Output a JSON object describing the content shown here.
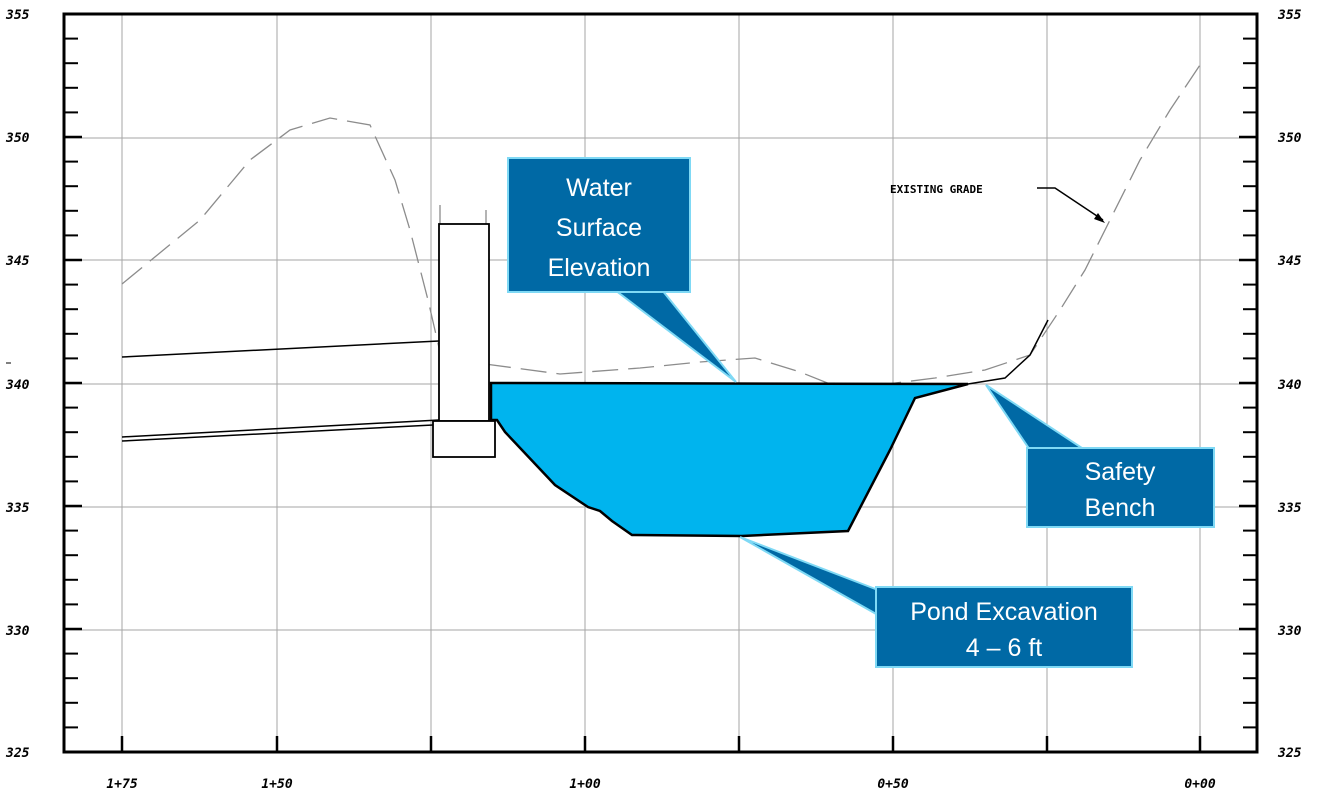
{
  "colors": {
    "water": "#00b4ee",
    "callout_fill": "#0069a5",
    "callout_border": "#7fd9f5",
    "grid": "#a6a6a6",
    "existing_grade": "#8c8c8c",
    "ink": "#000000"
  },
  "elevation_axis": {
    "ticks": [
      "355",
      "350",
      "345",
      "340",
      "335",
      "330",
      "325"
    ]
  },
  "station_axis": {
    "labels": [
      "1+75",
      "1+50",
      "1+00",
      "0+50",
      "0+00"
    ]
  },
  "notes": {
    "existing_grade": "EXISTING GRADE"
  },
  "callouts": {
    "water_surface": [
      "Water",
      "Surface",
      "Elevation"
    ],
    "safety_bench": [
      "Safety",
      "Bench"
    ],
    "pond_excavation": [
      "Pond Excavation",
      "4 – 6 ft"
    ]
  }
}
